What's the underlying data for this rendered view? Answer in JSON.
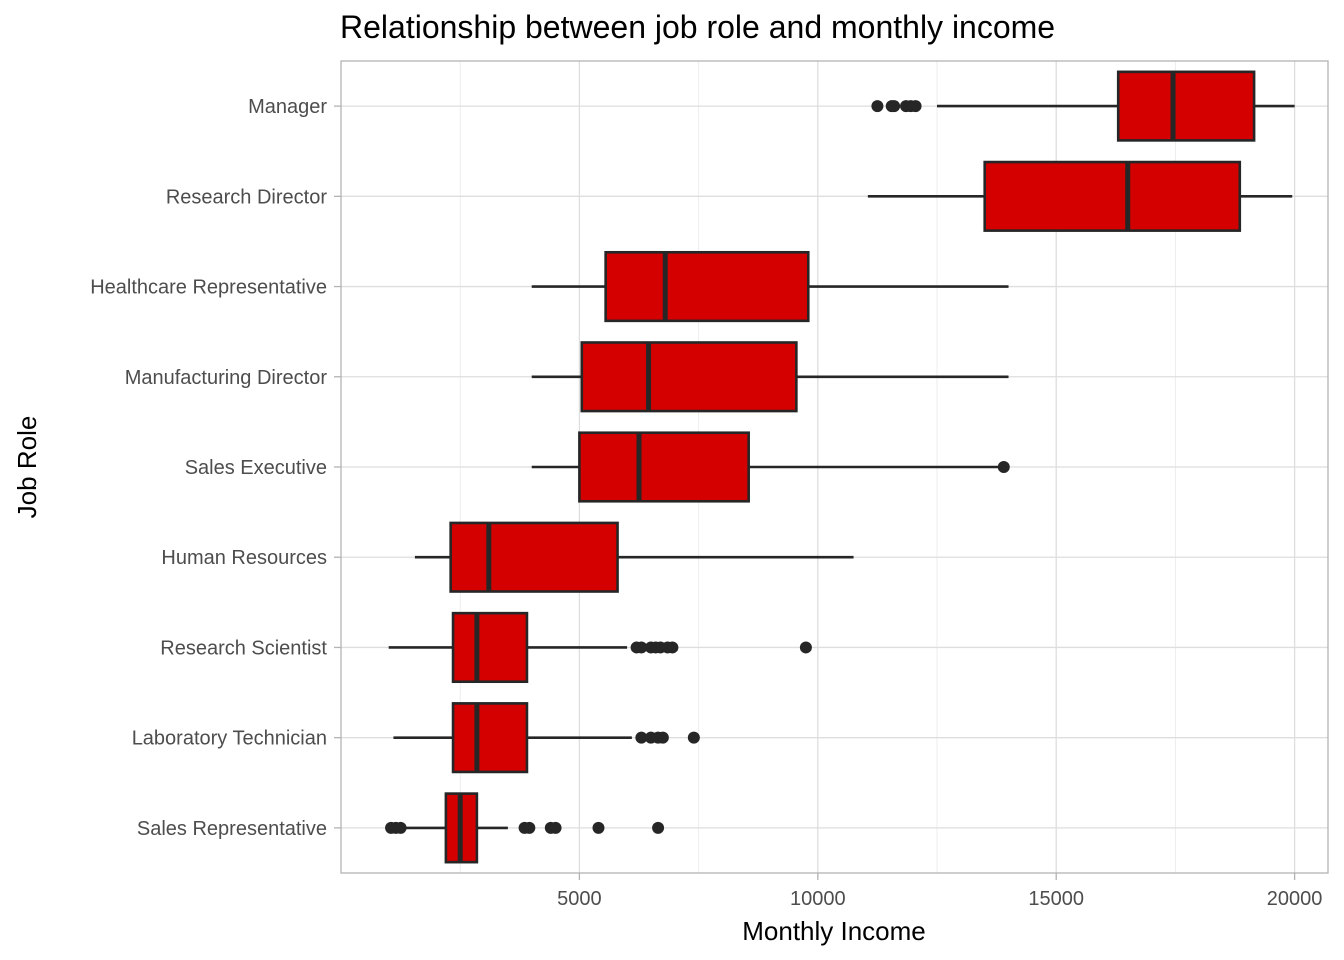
{
  "chart_data": {
    "type": "boxplot",
    "orientation": "horizontal",
    "title": "Relationship between job role and monthly income",
    "xlabel": "Monthly Income",
    "ylabel": "Job Role",
    "xlim": [
      0,
      20700
    ],
    "x_ticks": [
      5000,
      10000,
      15000,
      20000
    ],
    "x_tick_labels": [
      "5000",
      "10000",
      "15000",
      "20000"
    ],
    "grid": true,
    "colors": {
      "box_fill": "#d40000",
      "box_stroke": "#262626",
      "outlier": "#262626"
    },
    "categories": [
      "Manager",
      "Research Director",
      "Healthcare Representative",
      "Manufacturing Director",
      "Sales Executive",
      "Human Resources",
      "Research Scientist",
      "Laboratory Technician",
      "Sales Representative"
    ],
    "boxes": [
      {
        "label": "Manager",
        "whisker_low": 12500,
        "q1": 16300,
        "median": 17450,
        "q3": 19150,
        "whisker_high": 20000,
        "outliers": [
          11250,
          11550,
          11600,
          11850,
          11950,
          12050
        ]
      },
      {
        "label": "Research Director",
        "whisker_low": 11050,
        "q1": 13500,
        "median": 16500,
        "q3": 18850,
        "whisker_high": 19950,
        "outliers": []
      },
      {
        "label": "Healthcare Representative",
        "whisker_low": 4000,
        "q1": 5550,
        "median": 6800,
        "q3": 9800,
        "whisker_high": 14000,
        "outliers": []
      },
      {
        "label": "Manufacturing Director",
        "whisker_low": 4000,
        "q1": 5050,
        "median": 6450,
        "q3": 9550,
        "whisker_high": 14000,
        "outliers": []
      },
      {
        "label": "Sales Executive",
        "whisker_low": 4000,
        "q1": 5000,
        "median": 6250,
        "q3": 8550,
        "whisker_high": 13900,
        "outliers": [
          13900
        ]
      },
      {
        "label": "Human Resources",
        "whisker_low": 1550,
        "q1": 2300,
        "median": 3100,
        "q3": 5800,
        "whisker_high": 10750,
        "outliers": []
      },
      {
        "label": "Research Scientist",
        "whisker_low": 1000,
        "q1": 2350,
        "median": 2850,
        "q3": 3900,
        "whisker_high": 6000,
        "outliers": [
          6200,
          6300,
          6500,
          6600,
          6700,
          6850,
          6950,
          9750
        ]
      },
      {
        "label": "Laboratory Technician",
        "whisker_low": 1100,
        "q1": 2350,
        "median": 2850,
        "q3": 3900,
        "whisker_high": 6100,
        "outliers": [
          6300,
          6500,
          6650,
          6750,
          7400
        ]
      },
      {
        "label": "Sales Representative",
        "whisker_low": 1050,
        "q1": 2200,
        "median": 2500,
        "q3": 2850,
        "whisker_high": 3500,
        "outliers": [
          1050,
          1150,
          1250,
          3850,
          3950,
          4400,
          4500,
          5400,
          6650
        ]
      }
    ]
  }
}
